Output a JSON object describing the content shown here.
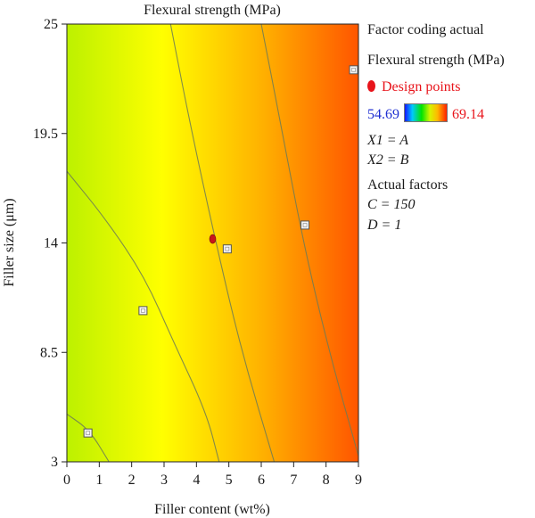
{
  "chart_data": {
    "type": "contour",
    "title": "Flexural strength (MPa)",
    "xlabel": "Filler content (wt%)",
    "ylabel": "Filler size (μm)",
    "xlim": [
      0,
      9
    ],
    "ylim": [
      3,
      25
    ],
    "x_ticks": [
      "0",
      "1",
      "2",
      "3",
      "4",
      "5",
      "6",
      "7",
      "8",
      "9"
    ],
    "y_ticks": [
      "3",
      "8.5",
      "14",
      "19.5",
      "25"
    ],
    "response_range": [
      54.69,
      69.14
    ],
    "color_scale": [
      "#00e000",
      "#b8f000",
      "#ffff00",
      "#ffb000",
      "#ff5000",
      "#ff0000"
    ],
    "contours": [
      {
        "points": [
          [
            0,
            5.4
          ],
          [
            0.7,
            4.6
          ],
          [
            1.3,
            3.0
          ]
        ]
      },
      {
        "points": [
          [
            0,
            17.6
          ],
          [
            1.2,
            15.2
          ],
          [
            2.4,
            12.3
          ],
          [
            3.3,
            9.0
          ],
          [
            4.3,
            5.5
          ],
          [
            4.7,
            3.0
          ]
        ]
      },
      {
        "points": [
          [
            3.2,
            25
          ],
          [
            3.8,
            20
          ],
          [
            4.6,
            14
          ],
          [
            5.4,
            8.5
          ],
          [
            6.4,
            3.0
          ]
        ]
      },
      {
        "points": [
          [
            6.0,
            25
          ],
          [
            6.6,
            20
          ],
          [
            7.3,
            14
          ],
          [
            8.1,
            8.5
          ],
          [
            9.0,
            3.3
          ]
        ]
      }
    ],
    "design_points": [
      {
        "x": 0.65,
        "y": 4.45
      },
      {
        "x": 2.35,
        "y": 10.6
      },
      {
        "x": 4.95,
        "y": 13.7
      },
      {
        "x": 7.35,
        "y": 14.9
      },
      {
        "x": 8.85,
        "y": 22.7
      }
    ],
    "center_point": {
      "x": 4.5,
      "y": 14.2
    }
  },
  "legend": {
    "coding": "Factor coding actual",
    "metric": "Flexural strength (MPa)",
    "points_label": "Design points",
    "scale_min": "54.69",
    "scale_max": "69.14",
    "x1": "X1 = A",
    "x2": "X2 = B",
    "actual_factors": "Actual factors",
    "c": "C = 150",
    "d": "D = 1"
  }
}
